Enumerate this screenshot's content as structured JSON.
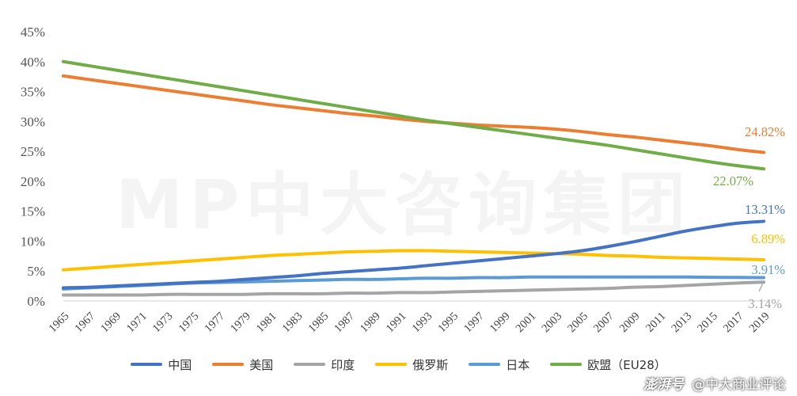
{
  "watermark": "MP中大咨询集团",
  "credit": {
    "logo": "澎湃号",
    "text": "@中大商业评论"
  },
  "chart_data": {
    "type": "line",
    "title": "",
    "xlabel": "",
    "ylabel": "",
    "ylim": [
      0,
      45
    ],
    "y_ticks": [
      "0%",
      "5%",
      "10%",
      "15%",
      "20%",
      "25%",
      "30%",
      "35%",
      "40%",
      "45%"
    ],
    "grid": false,
    "legend_position": "bottom",
    "x": [
      "1965",
      "1967",
      "1969",
      "1971",
      "1973",
      "1975",
      "1977",
      "1979",
      "1981",
      "1983",
      "1985",
      "1987",
      "1989",
      "1991",
      "1993",
      "1995",
      "1997",
      "1999",
      "2001",
      "2003",
      "2005",
      "2007",
      "2009",
      "2011",
      "2013",
      "2015",
      "2017",
      "2019"
    ],
    "series": [
      {
        "name": "中国",
        "color": "#4472C4",
        "values": [
          2.2,
          2.3,
          2.5,
          2.7,
          2.9,
          3.1,
          3.3,
          3.6,
          3.9,
          4.2,
          4.6,
          4.9,
          5.2,
          5.5,
          5.9,
          6.3,
          6.7,
          7.1,
          7.5,
          7.9,
          8.4,
          9.1,
          9.9,
          10.8,
          11.7,
          12.4,
          13.0,
          13.31
        ],
        "end_label": "13.31%"
      },
      {
        "name": "美国",
        "color": "#ED7D31",
        "values": [
          37.6,
          37.0,
          36.4,
          35.8,
          35.2,
          34.6,
          34.0,
          33.4,
          32.8,
          32.3,
          31.8,
          31.3,
          30.9,
          30.4,
          30.0,
          29.7,
          29.4,
          29.2,
          29.0,
          28.7,
          28.3,
          27.8,
          27.4,
          26.9,
          26.4,
          25.9,
          25.3,
          24.82
        ],
        "end_label": "24.82%"
      },
      {
        "name": "印度",
        "color": "#A5A5A5",
        "values": [
          1.0,
          1.0,
          1.0,
          1.0,
          1.1,
          1.1,
          1.1,
          1.1,
          1.2,
          1.2,
          1.2,
          1.3,
          1.3,
          1.4,
          1.4,
          1.5,
          1.6,
          1.7,
          1.8,
          1.9,
          2.0,
          2.1,
          2.3,
          2.4,
          2.6,
          2.8,
          3.0,
          3.14
        ],
        "end_label": "3.14%"
      },
      {
        "name": "俄罗斯",
        "color": "#FFC000",
        "values": [
          5.2,
          5.5,
          5.8,
          6.1,
          6.4,
          6.7,
          7.0,
          7.3,
          7.6,
          7.8,
          8.0,
          8.2,
          8.3,
          8.4,
          8.4,
          8.3,
          8.2,
          8.1,
          8.0,
          7.9,
          7.8,
          7.6,
          7.5,
          7.3,
          7.2,
          7.1,
          7.0,
          6.89
        ],
        "end_label": "6.89%"
      },
      {
        "name": "日本",
        "color": "#5B9BD5",
        "values": [
          2.0,
          2.2,
          2.4,
          2.6,
          2.8,
          3.0,
          3.1,
          3.2,
          3.3,
          3.4,
          3.5,
          3.6,
          3.6,
          3.7,
          3.8,
          3.8,
          3.9,
          3.9,
          4.0,
          4.0,
          4.0,
          4.0,
          4.0,
          4.0,
          4.0,
          3.95,
          3.93,
          3.91
        ],
        "end_label": "3.91%"
      },
      {
        "name": "欧盟（EU28）",
        "color": "#70AD47",
        "values": [
          40.0,
          39.3,
          38.6,
          37.9,
          37.2,
          36.5,
          35.8,
          35.1,
          34.4,
          33.7,
          33.0,
          32.3,
          31.6,
          30.9,
          30.2,
          29.6,
          29.0,
          28.4,
          27.8,
          27.2,
          26.6,
          26.0,
          25.3,
          24.6,
          23.9,
          23.2,
          22.6,
          22.07
        ],
        "end_label": "22.07%"
      }
    ]
  }
}
